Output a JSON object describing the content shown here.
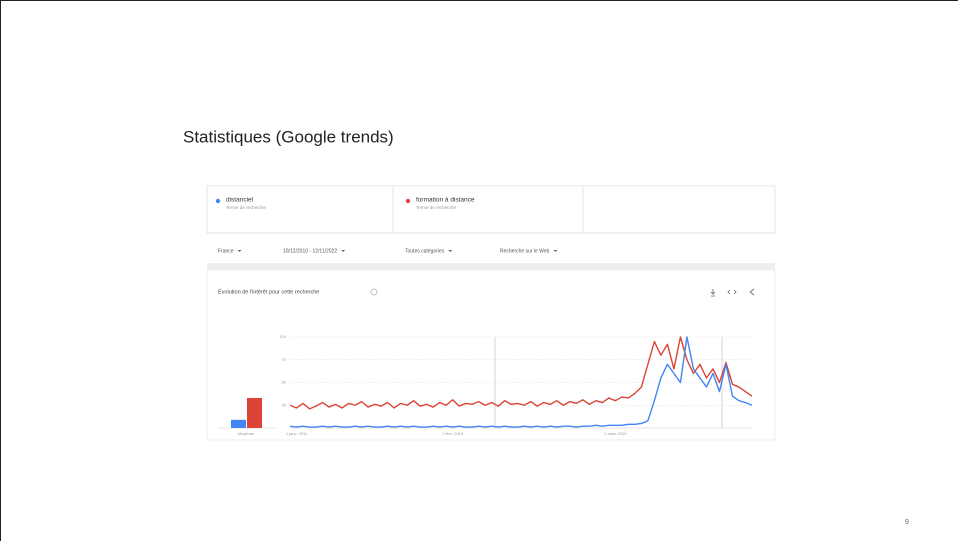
{
  "slide": {
    "title": "Statistiques (Google trends)",
    "page_number": "9"
  },
  "term_type": "Terme de recherche",
  "filters": [
    "France",
    "10/12/2010 - 12/11/2022",
    "Toutes catégories",
    "Recherche sur le Web"
  ],
  "chart_data": {
    "type": "line",
    "title": "Évolution de l'intérêt pour cette recherche",
    "average_label": "Moyenne",
    "categories": [
      null,
      "1 janv. 2011",
      null,
      null,
      null,
      null,
      null,
      null,
      null,
      null,
      null,
      null,
      null,
      null,
      null,
      null,
      null,
      null,
      null,
      null,
      null,
      null,
      null,
      null,
      null,
      "1 févr. 2015",
      null,
      null,
      null,
      null,
      null,
      null,
      null,
      null,
      null,
      null,
      null,
      null,
      null,
      null,
      null,
      null,
      null,
      null,
      null,
      null,
      null,
      null,
      null,
      null,
      "1 mars 2019",
      null,
      null,
      null,
      null,
      null,
      null,
      null,
      null,
      null,
      null,
      null,
      null,
      null,
      null,
      null,
      null,
      null,
      null,
      null,
      null,
      null
    ],
    "ylim": [
      0,
      100
    ],
    "yticks": [
      25,
      50,
      75,
      100
    ],
    "grid": true,
    "series": [
      {
        "name": "distanciel",
        "color": "#4285f4",
        "average": 9,
        "values": [
          2,
          1,
          2,
          1,
          1,
          2,
          1,
          2,
          1,
          1,
          2,
          1,
          2,
          1,
          1,
          2,
          1,
          2,
          1,
          2,
          1,
          1,
          2,
          1,
          2,
          1,
          2,
          1,
          1,
          2,
          1,
          2,
          1,
          2,
          1,
          1,
          2,
          1,
          2,
          1,
          2,
          1,
          2,
          2,
          1,
          2,
          2,
          3,
          2,
          3,
          3,
          3,
          4,
          4,
          5,
          8,
          30,
          55,
          70,
          60,
          50,
          100,
          65,
          55,
          45,
          60,
          40,
          70,
          35,
          30,
          28,
          25
        ]
      },
      {
        "name": "formation à distance",
        "color": "#db4437",
        "average": 33,
        "values": [
          25,
          22,
          27,
          21,
          24,
          28,
          23,
          26,
          22,
          27,
          25,
          29,
          23,
          26,
          24,
          28,
          22,
          27,
          25,
          30,
          24,
          26,
          23,
          28,
          25,
          31,
          24,
          27,
          26,
          29,
          25,
          28,
          24,
          30,
          26,
          27,
          25,
          29,
          24,
          28,
          26,
          30,
          25,
          29,
          27,
          31,
          26,
          30,
          28,
          33,
          30,
          34,
          33,
          38,
          45,
          70,
          95,
          80,
          92,
          65,
          100,
          75,
          60,
          70,
          55,
          65,
          50,
          72,
          48,
          45,
          40,
          35
        ]
      }
    ]
  }
}
